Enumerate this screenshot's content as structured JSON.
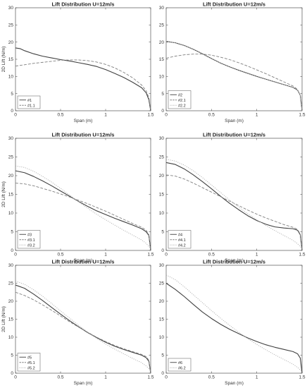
{
  "chart_data": [
    {
      "type": "line",
      "title": "Lift Distribution U=12m/s",
      "xlabel": "Span (m)",
      "ylabel": "2D Lift (N/m)",
      "xlim": [
        0,
        1.5
      ],
      "ylim": [
        0,
        30
      ],
      "xticks": [
        "0",
        "0.5",
        "1",
        "1.5"
      ],
      "yticks": [
        "0",
        "5",
        "10",
        "15",
        "20",
        "25",
        "30"
      ],
      "legend_position": "bottom-left",
      "series": [
        {
          "name": "#1",
          "style": "solid",
          "color": "#404040",
          "x": [
            0,
            0.05,
            0.1,
            0.2,
            0.3,
            0.4,
            0.5,
            0.6,
            0.7,
            0.8,
            0.9,
            1.0,
            1.1,
            1.2,
            1.3,
            1.4,
            1.45,
            1.48,
            1.5
          ],
          "y": [
            18.3,
            18.1,
            17.5,
            16.6,
            15.9,
            15.4,
            14.9,
            14.5,
            14.0,
            13.5,
            12.9,
            12.0,
            10.9,
            9.7,
            8.3,
            6.7,
            5.2,
            3.2,
            0
          ]
        },
        {
          "name": "#1.1",
          "style": "dashed",
          "color": "#808080",
          "x": [
            0,
            0.1,
            0.2,
            0.3,
            0.4,
            0.5,
            0.6,
            0.7,
            0.8,
            0.9,
            1.0,
            1.1,
            1.2,
            1.3,
            1.4,
            1.45,
            1.48,
            1.5
          ],
          "y": [
            13.0,
            13.4,
            13.8,
            14.1,
            14.4,
            14.7,
            14.8,
            14.8,
            14.6,
            14.2,
            13.5,
            12.5,
            11.2,
            9.6,
            7.5,
            5.8,
            3.8,
            0
          ]
        }
      ]
    },
    {
      "type": "line",
      "title": "Lift Distribution U=12m/s",
      "xlabel": "Span (m)",
      "ylabel": "",
      "xlim": [
        0,
        1.5
      ],
      "ylim": [
        0,
        30
      ],
      "xticks": [
        "0",
        "0.5",
        "1",
        "1.5"
      ],
      "yticks": [
        "0",
        "5",
        "10",
        "15",
        "20",
        "25",
        "30"
      ],
      "legend_position": "bottom-left",
      "series": [
        {
          "name": "#2",
          "style": "solid",
          "color": "#404040",
          "x": [
            0,
            0.1,
            0.2,
            0.3,
            0.4,
            0.5,
            0.6,
            0.7,
            0.8,
            0.9,
            1.0,
            1.1,
            1.2,
            1.3,
            1.4,
            1.45,
            1.48,
            1.5
          ],
          "y": [
            20.2,
            19.8,
            19.0,
            17.9,
            16.6,
            15.2,
            13.9,
            12.8,
            11.8,
            10.9,
            10.0,
            9.2,
            8.4,
            7.6,
            6.8,
            6.0,
            4.5,
            0
          ]
        },
        {
          "name": "#2.1",
          "style": "dashed",
          "color": "#808080",
          "x": [
            0,
            0.1,
            0.2,
            0.3,
            0.4,
            0.5,
            0.6,
            0.7,
            0.8,
            0.9,
            1.0,
            1.1,
            1.2,
            1.3,
            1.4,
            1.45,
            1.48,
            1.5
          ],
          "y": [
            15.3,
            15.9,
            16.3,
            16.5,
            16.5,
            16.2,
            15.6,
            14.9,
            14.0,
            13.0,
            11.9,
            10.8,
            9.6,
            8.4,
            7.2,
            6.2,
            4.5,
            0
          ]
        },
        {
          "name": "#2.2",
          "style": "dotted",
          "color": "#b0b0b0",
          "x": [
            0,
            0.1,
            0.2,
            0.3,
            0.4,
            0.5,
            0.6,
            0.7,
            0.8,
            0.9,
            1.0,
            1.1,
            1.2,
            1.3,
            1.4,
            1.45,
            1.48,
            1.5
          ],
          "y": [
            20.2,
            19.8,
            19.0,
            17.9,
            16.6,
            15.2,
            13.9,
            12.8,
            11.8,
            10.9,
            10.0,
            9.2,
            8.4,
            7.6,
            6.8,
            6.0,
            4.5,
            0
          ]
        }
      ]
    },
    {
      "type": "line",
      "title": "Lift Distribution U=12m/s",
      "xlabel": "Span (m)",
      "ylabel": "2D Lift (N/m)",
      "xlim": [
        0,
        1.5
      ],
      "ylim": [
        0,
        30
      ],
      "xticks": [
        "0",
        "0.5",
        "1",
        "1.5"
      ],
      "yticks": [
        "0",
        "5",
        "10",
        "15",
        "20",
        "25",
        "30"
      ],
      "legend_position": "bottom-left",
      "series": [
        {
          "name": "#3",
          "style": "solid",
          "color": "#404040",
          "x": [
            0,
            0.1,
            0.2,
            0.3,
            0.4,
            0.5,
            0.6,
            0.7,
            0.8,
            0.9,
            1.0,
            1.1,
            1.2,
            1.3,
            1.4,
            1.45,
            1.48,
            1.5
          ],
          "y": [
            21.3,
            20.8,
            19.8,
            18.6,
            17.3,
            15.9,
            14.5,
            13.1,
            11.8,
            10.6,
            9.6,
            8.6,
            7.7,
            6.8,
            5.8,
            5.0,
            4.0,
            0
          ]
        },
        {
          "name": "#3.1",
          "style": "dashed",
          "color": "#808080",
          "x": [
            0,
            0.1,
            0.2,
            0.3,
            0.4,
            0.5,
            0.6,
            0.7,
            0.8,
            0.9,
            1.0,
            1.1,
            1.2,
            1.3,
            1.4,
            1.45,
            1.48,
            1.5
          ],
          "y": [
            18.0,
            17.8,
            17.3,
            16.6,
            15.9,
            15.1,
            14.3,
            13.4,
            12.5,
            11.5,
            10.5,
            9.4,
            8.3,
            7.2,
            6.2,
            5.4,
            4.2,
            0
          ]
        },
        {
          "name": "#3.2",
          "style": "dotted",
          "color": "#b0b0b0",
          "x": [
            0,
            0.1,
            0.2,
            0.3,
            0.4,
            0.5,
            0.6,
            0.7,
            0.8,
            0.9,
            1.0,
            1.1,
            1.2,
            1.3,
            1.4,
            1.45,
            1.5
          ],
          "y": [
            22.6,
            22.2,
            21.2,
            19.8,
            18.3,
            16.6,
            14.8,
            13.0,
            11.3,
            9.7,
            8.2,
            6.8,
            5.4,
            4.1,
            2.8,
            1.9,
            0.5
          ]
        }
      ]
    },
    {
      "type": "line",
      "title": "Lift Distribution U=12m/s",
      "xlabel": "Span (m)",
      "ylabel": "",
      "xlim": [
        0,
        1.5
      ],
      "ylim": [
        0,
        30
      ],
      "xticks": [
        "0",
        "0.5",
        "1",
        "1.5"
      ],
      "yticks": [
        "0",
        "5",
        "10",
        "15",
        "20",
        "25",
        "30"
      ],
      "legend_position": "bottom-left",
      "series": [
        {
          "name": "#4",
          "style": "solid",
          "color": "#404040",
          "x": [
            0,
            0.1,
            0.2,
            0.3,
            0.4,
            0.5,
            0.6,
            0.7,
            0.8,
            0.9,
            1.0,
            1.1,
            1.2,
            1.3,
            1.4,
            1.45,
            1.48,
            1.5
          ],
          "y": [
            23.5,
            23.0,
            21.8,
            20.2,
            18.4,
            16.5,
            14.5,
            12.6,
            10.9,
            9.3,
            8.0,
            7.0,
            6.3,
            6.0,
            5.8,
            5.4,
            4.2,
            0
          ]
        },
        {
          "name": "#4.1",
          "style": "dashed",
          "color": "#808080",
          "x": [
            0,
            0.1,
            0.2,
            0.3,
            0.4,
            0.5,
            0.6,
            0.7,
            0.8,
            0.9,
            1.0,
            1.1,
            1.2,
            1.3,
            1.4,
            1.45,
            1.48,
            1.5
          ],
          "y": [
            20.2,
            19.9,
            19.1,
            18.0,
            16.8,
            15.6,
            14.4,
            13.2,
            12.0,
            10.8,
            9.7,
            8.7,
            7.8,
            6.9,
            6.2,
            5.6,
            4.4,
            0
          ]
        },
        {
          "name": "#4.2",
          "style": "dotted",
          "color": "#b0b0b0",
          "x": [
            0,
            0.1,
            0.2,
            0.3,
            0.4,
            0.5,
            0.6,
            0.7,
            0.8,
            0.9,
            1.0,
            1.1,
            1.2,
            1.3,
            1.4,
            1.45,
            1.5
          ],
          "y": [
            24.4,
            23.9,
            22.8,
            21.3,
            19.5,
            17.5,
            15.5,
            13.5,
            11.6,
            9.8,
            8.2,
            6.7,
            5.3,
            4.0,
            2.7,
            1.8,
            0.5
          ]
        }
      ]
    },
    {
      "type": "line",
      "title": "Lift Distribution U=12m/s",
      "xlabel": "Span (m)",
      "ylabel": "2D Lift (N/m)",
      "xlim": [
        0,
        1.5
      ],
      "ylim": [
        0,
        30
      ],
      "xticks": [
        "0",
        "0.5",
        "1",
        "1.5"
      ],
      "yticks": [
        "0",
        "5",
        "10",
        "15",
        "20",
        "25",
        "30"
      ],
      "legend_position": "bottom-left",
      "series": [
        {
          "name": "#5",
          "style": "solid",
          "color": "#404040",
          "x": [
            0,
            0.1,
            0.2,
            0.3,
            0.4,
            0.5,
            0.6,
            0.7,
            0.8,
            0.9,
            1.0,
            1.1,
            1.2,
            1.3,
            1.4,
            1.45,
            1.48,
            1.5
          ],
          "y": [
            24.5,
            23.6,
            22.0,
            20.2,
            18.3,
            16.4,
            14.6,
            12.9,
            11.3,
            9.9,
            8.6,
            7.5,
            6.6,
            5.8,
            5.0,
            4.3,
            3.3,
            0
          ]
        },
        {
          "name": "#5.1",
          "style": "dashed",
          "color": "#808080",
          "x": [
            0,
            0.1,
            0.2,
            0.3,
            0.4,
            0.5,
            0.6,
            0.7,
            0.8,
            0.9,
            1.0,
            1.1,
            1.2,
            1.3,
            1.4,
            1.45,
            1.48,
            1.5
          ],
          "y": [
            22.5,
            21.6,
            20.4,
            19.0,
            17.5,
            15.9,
            14.3,
            12.8,
            11.4,
            10.0,
            8.8,
            7.7,
            6.8,
            6.0,
            5.2,
            4.6,
            3.6,
            0
          ]
        },
        {
          "name": "#5.2",
          "style": "dotted",
          "color": "#b0b0b0",
          "x": [
            0,
            0.1,
            0.2,
            0.3,
            0.4,
            0.5,
            0.6,
            0.7,
            0.8,
            0.9,
            1.0,
            1.1,
            1.2,
            1.3,
            1.4,
            1.45,
            1.5
          ],
          "y": [
            25.6,
            24.7,
            23.2,
            21.4,
            19.4,
            17.3,
            15.3,
            13.3,
            11.4,
            9.7,
            8.1,
            6.7,
            5.4,
            4.1,
            2.9,
            2.0,
            0.8
          ]
        }
      ]
    },
    {
      "type": "line",
      "title": "Lift Distribution U=12m/s",
      "xlabel": "Span (m)",
      "ylabel": "",
      "xlim": [
        0,
        1.5
      ],
      "ylim": [
        0,
        30
      ],
      "xticks": [
        "0",
        "0.5",
        "1",
        "1.5"
      ],
      "yticks": [
        "0",
        "5",
        "10",
        "15",
        "20",
        "25",
        "30"
      ],
      "legend_position": "bottom-left",
      "series": [
        {
          "name": "#6",
          "style": "solid",
          "color": "#404040",
          "x": [
            0,
            0.1,
            0.2,
            0.3,
            0.4,
            0.5,
            0.6,
            0.7,
            0.8,
            0.9,
            1.0,
            1.1,
            1.2,
            1.3,
            1.4,
            1.45,
            1.48,
            1.5
          ],
          "y": [
            25.0,
            23.3,
            21.3,
            19.1,
            17.0,
            15.2,
            13.6,
            12.2,
            11.0,
            9.8,
            8.8,
            7.9,
            7.2,
            6.6,
            6.0,
            5.4,
            4.2,
            0
          ]
        },
        {
          "name": "#6.2",
          "style": "dotted",
          "color": "#b0b0b0",
          "x": [
            0,
            0.1,
            0.2,
            0.3,
            0.4,
            0.5,
            0.6,
            0.7,
            0.8,
            0.9,
            1.0,
            1.1,
            1.2,
            1.3,
            1.4,
            1.45,
            1.5
          ],
          "y": [
            27.3,
            26.0,
            24.0,
            21.8,
            19.6,
            17.4,
            15.3,
            13.3,
            11.4,
            9.6,
            8.0,
            6.5,
            5.1,
            3.8,
            2.5,
            1.6,
            0.5
          ]
        }
      ]
    }
  ]
}
